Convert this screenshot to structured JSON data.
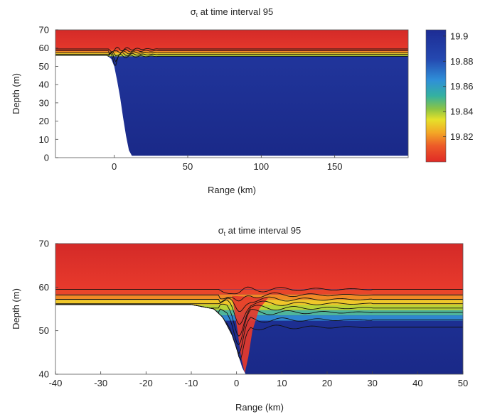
{
  "chart_data": [
    {
      "type": "heatmap",
      "title": "σt at time interval 95",
      "title_symbol": "σ",
      "title_subscript": "t",
      "title_rest": " at time interval 95",
      "xlabel": "Range (km)",
      "ylabel": "Depth (m)",
      "xlim": [
        -40,
        200
      ],
      "ylim": [
        0,
        70
      ],
      "xticks": [
        0,
        50,
        100,
        150
      ],
      "yticks": [
        0,
        10,
        20,
        30,
        40,
        50,
        60,
        70
      ],
      "colormap": "jet-reversed (red = low σt, blue = high σt)",
      "surface_layer_color": "#e8322a",
      "deep_layer_color": "#1d2c94",
      "interface_depth": 57.5,
      "bottom_profile": {
        "description": "shelf at ~56 m for x<-5 km dropping steeply to 0 m by ~10 km",
        "x": [
          -40,
          -5,
          -2,
          0,
          2,
          4,
          6,
          8,
          10,
          12,
          80
        ],
        "depth": [
          56,
          56,
          54,
          50,
          42,
          33,
          22,
          12,
          4,
          1,
          1
        ]
      },
      "contour_depths": [
        59.5,
        58.5,
        57.5,
        56.5,
        55.5
      ],
      "colorbar": {
        "ticks": [
          19.9,
          19.88,
          19.86,
          19.84,
          19.82
        ],
        "range": [
          19.8,
          19.905
        ]
      }
    },
    {
      "type": "heatmap",
      "title": "σt at time interval 95",
      "title_symbol": "σ",
      "title_subscript": "t",
      "title_rest": " at time interval 95",
      "xlabel": "Range (km)",
      "ylabel": "Depth (m)",
      "xlim": [
        -40,
        50
      ],
      "ylim": [
        40,
        70
      ],
      "xticks": [
        -40,
        -30,
        -20,
        -10,
        0,
        10,
        20,
        30,
        40,
        50
      ],
      "yticks": [
        40,
        50,
        60,
        70
      ],
      "colormap": "jet-reversed (red = low σt, blue = high σt)",
      "bottom_profile": {
        "x": [
          -40,
          -10,
          -5,
          -3,
          -1,
          0,
          1,
          2,
          3,
          4
        ],
        "depth": [
          56,
          56,
          55,
          53,
          49,
          46,
          42,
          40,
          40,
          40
        ]
      },
      "contour_depths": [
        59.5,
        58.2,
        57.2,
        56.2,
        55.2,
        54.2,
        52.5,
        50.8
      ],
      "colorbar": null
    }
  ]
}
